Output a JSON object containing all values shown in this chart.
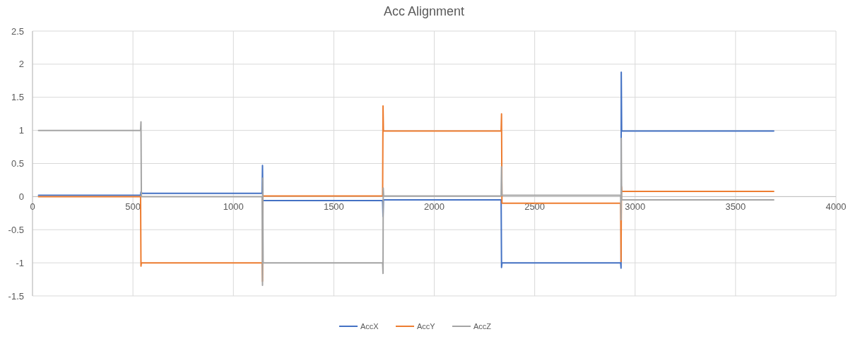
{
  "chart_data": {
    "type": "line",
    "title": "Acc Alignment",
    "xlim": [
      0,
      4000
    ],
    "xticks": [
      0,
      500,
      1000,
      1500,
      2000,
      2500,
      3000,
      3500,
      4000
    ],
    "ylim": [
      -1.5,
      2.5
    ],
    "yticks": [
      -1.5,
      -1,
      -0.5,
      0,
      0.5,
      1,
      1.5,
      2,
      2.5
    ],
    "grid": true,
    "legend": "bottom",
    "marker": "none",
    "line_style": "solid",
    "series": [
      {
        "name": "AccX",
        "color": "#4472c4",
        "x": [
          30,
          538,
          540,
          545,
          1143,
          1145,
          1147,
          1743,
          1745,
          1747,
          2333,
          2335,
          2337,
          2928,
          2930,
          2931,
          2933,
          3690
        ],
        "values": [
          0.02,
          0.02,
          0.07,
          0.05,
          0.05,
          0.47,
          -0.06,
          -0.06,
          -0.3,
          -0.05,
          -0.05,
          -1.07,
          -1.0,
          -1.0,
          -1.08,
          1.88,
          0.99,
          0.99
        ]
      },
      {
        "name": "AccY",
        "color": "#ed7d31",
        "x": [
          30,
          538,
          540,
          542,
          1143,
          1145,
          1147,
          1743,
          1745,
          1747,
          2333,
          2335,
          2337,
          2928,
          2930,
          2932,
          2934,
          3690
        ],
        "values": [
          0,
          0,
          -1.05,
          -1.0,
          -1.0,
          -1.28,
          0.01,
          0.01,
          1.37,
          0.99,
          0.99,
          1.25,
          -0.1,
          -0.1,
          -0.98,
          0.15,
          0.08,
          0.08
        ]
      },
      {
        "name": "AccZ",
        "color": "#a5a5a5",
        "x": [
          30,
          538,
          540,
          542,
          1143,
          1145,
          1146,
          1148,
          1743,
          1745,
          1746,
          1748,
          2333,
          2335,
          2337,
          2928,
          2930,
          2931,
          2933,
          3690
        ],
        "values": [
          1.0,
          1.0,
          1.13,
          0.0,
          0.0,
          -1.34,
          0.28,
          -1.0,
          -1.0,
          -1.16,
          0.13,
          0.01,
          0.01,
          0.45,
          0.02,
          0.02,
          -0.35,
          0.88,
          -0.05,
          -0.05
        ]
      }
    ]
  }
}
